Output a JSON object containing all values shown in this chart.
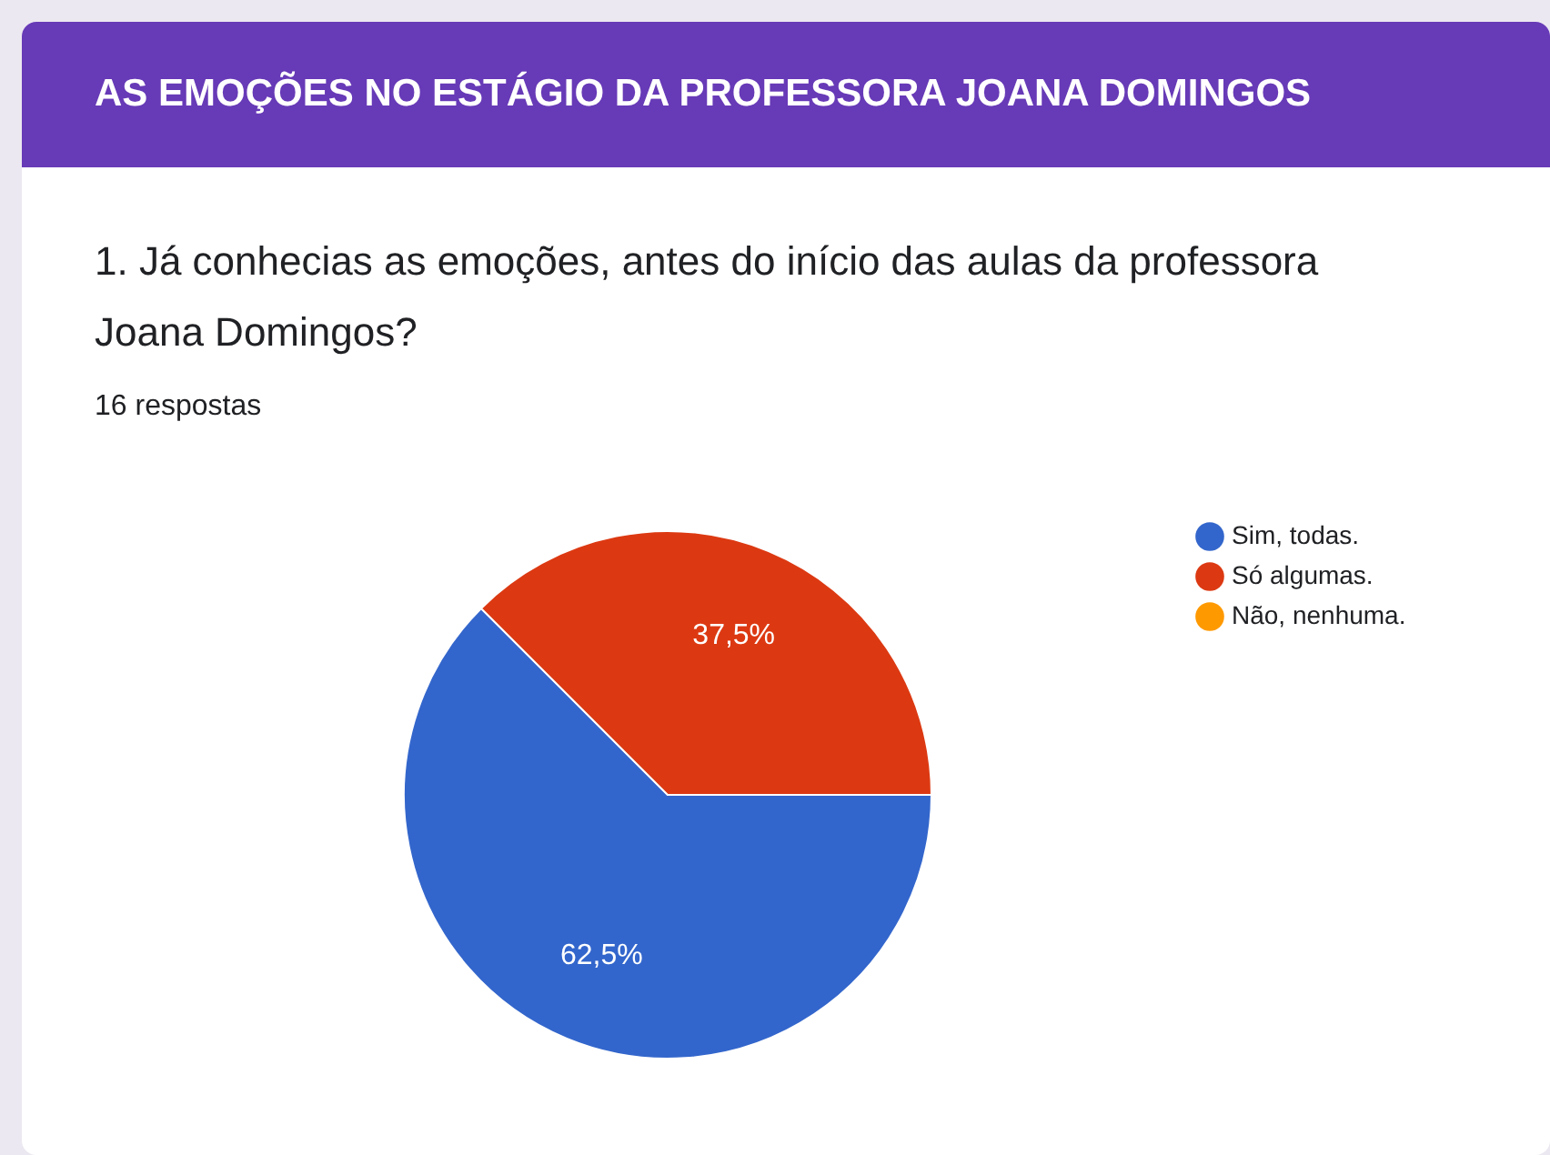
{
  "chart_data": {
    "type": "pie",
    "title": "AS EMOÇÕES NO ESTÁGIO DA PROFESSORA JOANA DOMINGOS",
    "subtitle": "1. Já conhecias as emoções, antes do início das aulas da professora Joana Domingos?",
    "annotations": [
      "16 respostas"
    ],
    "categories": [
      "Sim, todas.",
      "Só algumas.",
      "Não, nenhuma."
    ],
    "values": [
      62.5,
      37.5,
      0
    ],
    "colors": [
      "#3366cc",
      "#dc3912",
      "#ff9900"
    ],
    "value_labels": [
      "62,5%",
      "37,5%",
      null
    ],
    "legend": "right"
  }
}
